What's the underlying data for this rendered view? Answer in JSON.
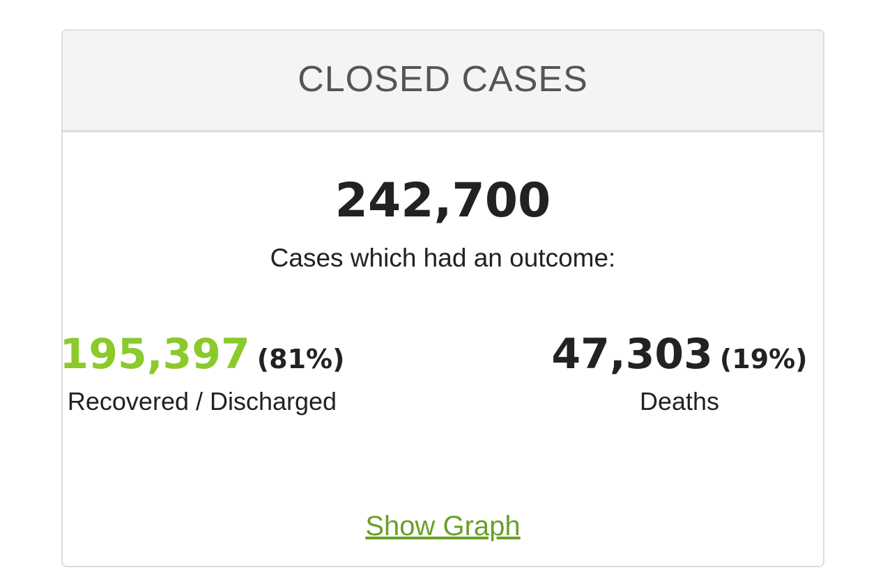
{
  "header": {
    "title": "CLOSED CASES"
  },
  "total": {
    "value": "242,700",
    "label": "Cases which had an outcome:"
  },
  "recovered": {
    "value": "195,397",
    "percent": "(81%)",
    "label": "Recovered / Discharged"
  },
  "deaths": {
    "value": "47,303",
    "percent": "(19%)",
    "label": "Deaths"
  },
  "link": {
    "label": "Show Graph"
  }
}
